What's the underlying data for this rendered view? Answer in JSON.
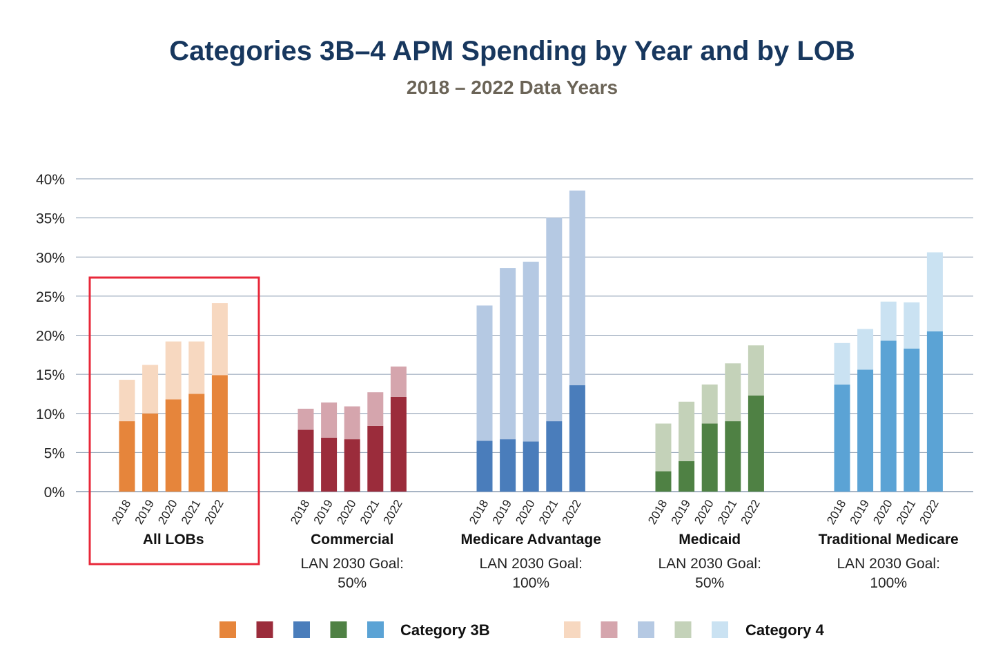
{
  "chart_data": {
    "type": "bar",
    "stacked": true,
    "title": "Categories 3B–4 APM Spending by Year and by LOB",
    "subtitle": "2018 – 2022 Data Years",
    "xlabel": "",
    "ylabel": "",
    "ylim": [
      0,
      40
    ],
    "yticks": [
      "0%",
      "5%",
      "10%",
      "15%",
      "20%",
      "25%",
      "30%",
      "35%",
      "40%"
    ],
    "grid": true,
    "years": [
      "2018",
      "2019",
      "2020",
      "2021",
      "2022"
    ],
    "groups": [
      {
        "name": "All LOBs",
        "goal": "",
        "color3b": "#e6853b",
        "color4": "#f7d8c0",
        "highlighted": true,
        "category_3b": [
          9.0,
          10.0,
          11.8,
          12.5,
          14.9
        ],
        "category_4": [
          5.3,
          6.2,
          7.4,
          6.7,
          9.2
        ]
      },
      {
        "name": "Commercial",
        "goal": "LAN 2030 Goal:",
        "goal_value": "50%",
        "color3b": "#9b2c3b",
        "color4": "#d5a5ad",
        "category_3b": [
          7.9,
          6.9,
          6.7,
          8.4,
          12.1
        ],
        "category_4": [
          2.7,
          4.5,
          4.2,
          4.3,
          3.9
        ]
      },
      {
        "name": "Medicare Advantage",
        "goal": "LAN 2030 Goal:",
        "goal_value": "100%",
        "color3b": "#4a7dbb",
        "color4": "#b5c9e3",
        "category_3b": [
          6.5,
          6.7,
          6.4,
          9.0,
          13.6
        ],
        "category_4": [
          17.3,
          21.9,
          23.0,
          26.0,
          24.9
        ]
      },
      {
        "name": "Medicaid",
        "goal": "LAN 2030 Goal:",
        "goal_value": "50%",
        "color3b": "#4f8144",
        "color4": "#c4d2b9",
        "category_3b": [
          2.6,
          3.9,
          8.7,
          9.0,
          12.3
        ],
        "category_4": [
          6.1,
          7.6,
          5.0,
          7.4,
          6.4
        ]
      },
      {
        "name": "Traditional Medicare",
        "goal": "LAN 2030 Goal:",
        "goal_value": "100%",
        "color3b": "#5ba3d5",
        "color4": "#cae2f2",
        "category_3b": [
          13.7,
          15.6,
          19.3,
          18.3,
          20.5
        ],
        "category_4": [
          5.3,
          5.2,
          5.0,
          5.9,
          10.1
        ]
      }
    ],
    "legend": {
      "category_3b": "Category 3B",
      "category_4": "Category 4",
      "placement": "bottom"
    },
    "highlight_color": "#e8283a",
    "grid_color": "#8a9bb0"
  }
}
